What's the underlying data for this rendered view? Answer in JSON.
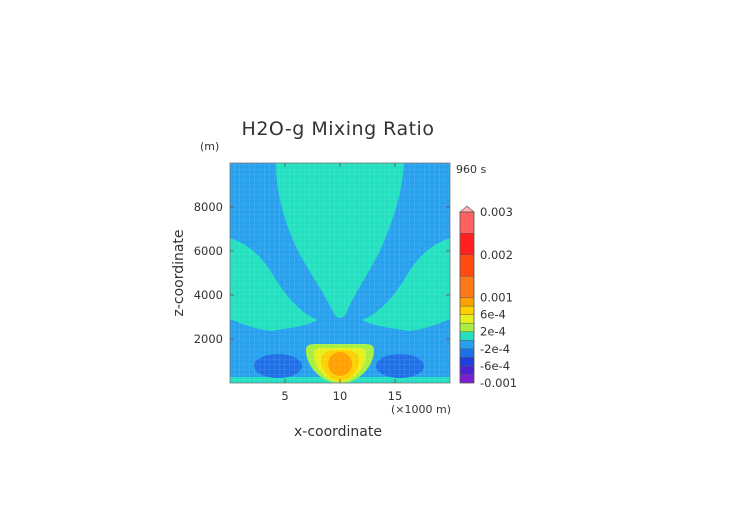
{
  "chart_data": {
    "type": "heatmap",
    "title": "H2O-g Mixing Ratio",
    "xlabel": "x-coordinate",
    "ylabel": "z-coordinate",
    "x_unit": "(×1000 m)",
    "y_unit": "(m)",
    "time_label": "960 s",
    "xlim": [
      0,
      20
    ],
    "ylim": [
      0,
      10000
    ],
    "x_ticks": [
      "5",
      "10",
      "15"
    ],
    "x_tick_values": [
      5,
      10,
      15
    ],
    "y_ticks": [
      "2000",
      "4000",
      "6000",
      "8000"
    ],
    "y_tick_values": [
      2000,
      4000,
      6000,
      8000
    ],
    "colorbar": {
      "min": -0.001,
      "max": 0.003,
      "labels": [
        "0.003",
        "0.002",
        "0.001",
        "6e-4",
        "2e-4",
        "-2e-4",
        "-6e-4",
        "-0.001"
      ],
      "label_values": [
        0.003,
        0.002,
        0.001,
        0.0006,
        0.0002,
        -0.0002,
        -0.0006,
        -0.001
      ],
      "bands": [
        {
          "from": -0.001,
          "to": -0.0008,
          "color": "#7a1fd0"
        },
        {
          "from": -0.0008,
          "to": -0.0006,
          "color": "#4a22d6"
        },
        {
          "from": -0.0006,
          "to": -0.0004,
          "color": "#1f3ee0"
        },
        {
          "from": -0.0004,
          "to": -0.0002,
          "color": "#1f6fe6"
        },
        {
          "from": -0.0002,
          "to": 0.0,
          "color": "#27a0ee"
        },
        {
          "from": 0.0,
          "to": 0.0002,
          "color": "#22e0c0"
        },
        {
          "from": 0.0002,
          "to": 0.0004,
          "color": "#a8f040"
        },
        {
          "from": 0.0004,
          "to": 0.0006,
          "color": "#e6f01c"
        },
        {
          "from": 0.0006,
          "to": 0.0008,
          "color": "#ffd000"
        },
        {
          "from": 0.0008,
          "to": 0.001,
          "color": "#ffa000"
        },
        {
          "from": 0.001,
          "to": 0.0015,
          "color": "#ff7818"
        },
        {
          "from": 0.0015,
          "to": 0.002,
          "color": "#ff4a10"
        },
        {
          "from": 0.002,
          "to": 0.0025,
          "color": "#ff2020"
        },
        {
          "from": 0.0025,
          "to": 0.003,
          "color": "#ff6060"
        },
        {
          "from": 0.003,
          "to": 0.0035,
          "color": "#ffb0b0"
        }
      ]
    },
    "field": {
      "background_value": -0.0001,
      "regions": [
        {
          "name": "upper-plume",
          "value": 0.0001,
          "color": "#22e0c0"
        },
        {
          "name": "left-anomaly",
          "value": -0.0003,
          "color": "#1f6fe6"
        },
        {
          "name": "right-anomaly",
          "value": -0.0003,
          "color": "#1f6fe6"
        },
        {
          "name": "core-outer",
          "value": 0.0003,
          "color": "#a8f040"
        },
        {
          "name": "core-mid",
          "value": 0.0005,
          "color": "#e6f01c"
        },
        {
          "name": "core-inner",
          "value": 0.0007,
          "color": "#ffd000"
        },
        {
          "name": "core-center",
          "value": 0.0009,
          "color": "#ffa000"
        }
      ]
    }
  }
}
